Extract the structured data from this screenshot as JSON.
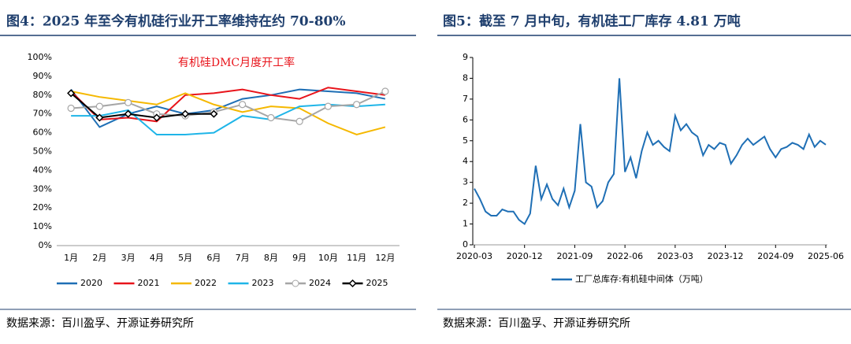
{
  "chart_data": [
    {
      "type": "line",
      "title": "图4：2025 年至今有机硅行业开工率维持在约 70-80%",
      "annotation": "有机硅DMC月度开工率",
      "source": "数据来源：百川盈孚、开源证券研究所",
      "categories": [
        "1月",
        "2月",
        "3月",
        "4月",
        "5月",
        "6月",
        "7月",
        "8月",
        "9月",
        "10月",
        "11月",
        "12月"
      ],
      "ylim": [
        0,
        100
      ],
      "yticks": [
        {
          "value": 0,
          "label": "0%"
        },
        {
          "value": 10,
          "label": "10%"
        },
        {
          "value": 20,
          "label": "20%"
        },
        {
          "value": 30,
          "label": "30%"
        },
        {
          "value": 40,
          "label": "40%"
        },
        {
          "value": 50,
          "label": "50%"
        },
        {
          "value": 60,
          "label": "60%"
        },
        {
          "value": 70,
          "label": "70%"
        },
        {
          "value": 80,
          "label": "80%"
        },
        {
          "value": 90,
          "label": "90%"
        },
        {
          "value": 100,
          "label": "100%"
        }
      ],
      "legend": "bottom",
      "series": [
        {
          "name": "2020",
          "color": "#1f6fb5",
          "values": [
            83,
            63,
            70,
            74,
            70,
            72,
            78,
            80,
            83,
            82,
            81,
            78
          ]
        },
        {
          "name": "2021",
          "color": "#e8141b",
          "values": [
            82,
            67,
            68,
            66,
            80,
            81,
            83,
            80,
            78,
            84,
            82,
            80
          ]
        },
        {
          "name": "2022",
          "color": "#f5b800",
          "values": [
            82,
            79,
            77,
            75,
            81,
            75,
            71,
            74,
            73,
            65,
            59,
            63
          ]
        },
        {
          "name": "2023",
          "color": "#1fb5e8",
          "values": [
            69,
            69,
            72,
            59,
            59,
            60,
            69,
            67,
            74,
            75,
            74,
            75
          ]
        },
        {
          "name": "2024",
          "color": "#a6a6a6",
          "marker": "circle",
          "values": [
            73,
            74,
            76,
            70,
            69,
            71,
            75,
            68,
            66,
            74,
            75,
            82
          ]
        },
        {
          "name": "2025",
          "color": "#000000",
          "marker": "diamond",
          "values": [
            81,
            68,
            70,
            68,
            70,
            70,
            null,
            null,
            null,
            null,
            null,
            null
          ]
        }
      ]
    },
    {
      "type": "line",
      "title": "图5：截至 7 月中旬，有机硅工厂库存 4.81 万吨",
      "source": "数据来源：百川盈孚、开源证券研究所",
      "x": [
        "2020-03",
        "2020-04",
        "2020-05",
        "2020-06",
        "2020-07",
        "2020-08",
        "2020-09",
        "2020-10",
        "2020-11",
        "2020-12",
        "2021-01",
        "2021-02",
        "2021-03",
        "2021-04",
        "2021-05",
        "2021-06",
        "2021-07",
        "2021-08",
        "2021-09",
        "2021-10",
        "2021-11",
        "2021-12",
        "2022-01",
        "2022-02",
        "2022-03",
        "2022-04",
        "2022-05",
        "2022-06",
        "2022-07",
        "2022-08",
        "2022-09",
        "2022-10",
        "2022-11",
        "2022-12",
        "2023-01",
        "2023-02",
        "2023-03",
        "2023-04",
        "2023-05",
        "2023-06",
        "2023-07",
        "2023-08",
        "2023-09",
        "2023-10",
        "2023-11",
        "2023-12",
        "2024-01",
        "2024-02",
        "2024-03",
        "2024-04",
        "2024-05",
        "2024-06",
        "2024-07",
        "2024-08",
        "2024-09",
        "2024-10",
        "2024-11",
        "2024-12",
        "2025-01",
        "2025-02",
        "2025-03",
        "2025-04",
        "2025-05",
        "2025-06"
      ],
      "xticks": [
        "2020-03",
        "2020-12",
        "2021-09",
        "2022-06",
        "2023-03",
        "2023-12",
        "2024-09",
        "2025-06"
      ],
      "ylim": [
        0,
        9
      ],
      "yticks": [
        0,
        1,
        2,
        3,
        4,
        5,
        6,
        7,
        8,
        9
      ],
      "legend": "bottom",
      "series": [
        {
          "name": "工厂总库存:有机硅中间体（万吨）",
          "color": "#1f6fb5",
          "values": [
            2.7,
            2.2,
            1.6,
            1.4,
            1.4,
            1.7,
            1.6,
            1.6,
            1.2,
            1.0,
            1.5,
            3.8,
            2.2,
            2.9,
            2.2,
            1.9,
            2.7,
            1.8,
            2.6,
            5.8,
            3.0,
            2.8,
            1.8,
            2.1,
            3.0,
            3.4,
            8.0,
            3.5,
            4.2,
            3.2,
            4.5,
            5.4,
            4.8,
            5.0,
            4.7,
            4.5,
            6.2,
            5.5,
            5.8,
            5.4,
            5.2,
            4.3,
            4.8,
            4.6,
            4.9,
            4.8,
            3.9,
            4.3,
            4.8,
            5.1,
            4.8,
            5.0,
            5.2,
            4.6,
            4.2,
            4.6,
            4.7,
            4.9,
            4.8,
            4.6,
            5.3,
            4.7,
            5.0,
            4.81
          ]
        }
      ]
    }
  ]
}
